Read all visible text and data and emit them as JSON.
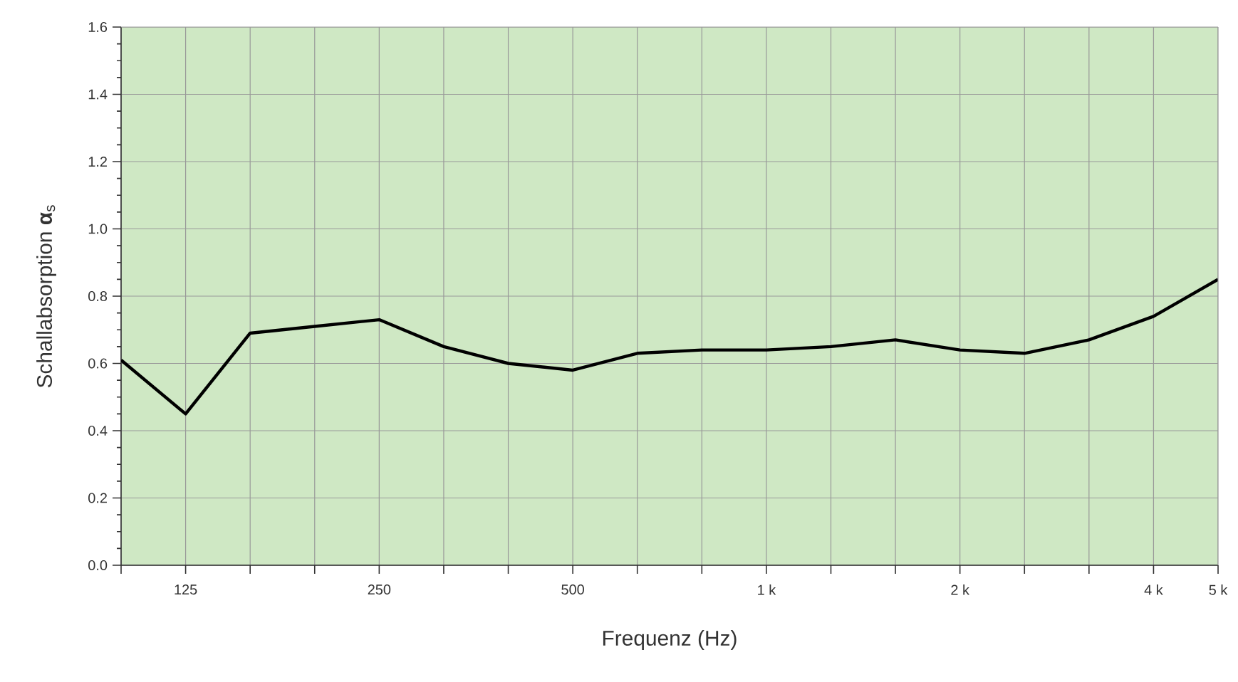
{
  "chart_data": {
    "type": "line",
    "xlabel": "Frequenz (Hz)",
    "ylabel": "Schallabsorption **α**$_{s}$",
    "categories": [
      null,
      "125",
      null,
      null,
      "250",
      null,
      null,
      "500",
      null,
      null,
      "1 k",
      null,
      null,
      "2 k",
      null,
      null,
      "4 k",
      "5 k"
    ],
    "series": [
      {
        "color": "#000000",
        "values": [
          0.61,
          0.45,
          0.69,
          0.71,
          0.73,
          0.65,
          0.6,
          0.58,
          0.63,
          0.64,
          0.64,
          0.65,
          0.67,
          0.64,
          0.63,
          0.67,
          0.74,
          0.85
        ]
      }
    ],
    "ylim": [
      0,
      1.6
    ],
    "yticks": [
      "0.0",
      {
        "value": 0.05,
        "label": null
      },
      {
        "value": 0.1,
        "label": null
      },
      {
        "value": 0.15,
        "label": null
      },
      {
        "value": 0.2,
        "label": "0.2"
      },
      {
        "value": 0.25,
        "label": null
      },
      {
        "value": 0.3,
        "label": null
      },
      {
        "value": 0.35,
        "label": null
      },
      {
        "value": 0.4,
        "label": "0.4"
      },
      {
        "value": 0.45,
        "label": null
      },
      {
        "value": 0.5,
        "label": null
      },
      {
        "value": 0.55,
        "label": null
      },
      {
        "value": 0.6,
        "label": "0.6"
      },
      {
        "value": 0.65,
        "label": null
      },
      {
        "value": 0.7,
        "label": null
      },
      {
        "value": 0.75,
        "label": null
      },
      {
        "value": 0.8,
        "label": "0.8"
      },
      {
        "value": 0.85,
        "label": null
      },
      {
        "value": 0.9,
        "label": null
      },
      {
        "value": 0.95,
        "label": null
      },
      {
        "value": 1.0,
        "label": "1.0"
      },
      {
        "value": 1.05,
        "label": null
      },
      {
        "value": 1.1,
        "label": null
      },
      {
        "value": 1.15,
        "label": null
      },
      {
        "value": 1.2,
        "label": "1.2"
      },
      {
        "value": 1.25,
        "label": null
      },
      {
        "value": 1.3,
        "label": null
      },
      {
        "value": 1.35,
        "label": null
      },
      {
        "value": 1.4,
        "label": "1.4"
      },
      {
        "value": 1.45,
        "label": null
      },
      {
        "value": 1.5,
        "label": null
      },
      {
        "value": 1.55,
        "label": null
      },
      {
        "value": 1.6,
        "label": "1.6"
      }
    ],
    "grid": true,
    "marker": "none",
    "line_style": "solid"
  }
}
